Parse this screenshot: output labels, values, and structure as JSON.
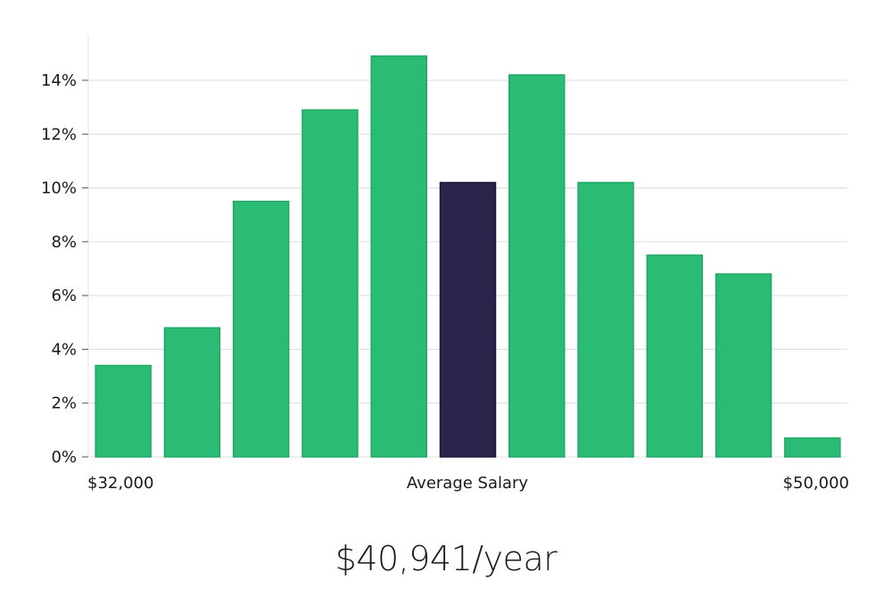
{
  "chart_data": {
    "type": "bar",
    "title": "",
    "xlabel": "Average Salary",
    "ylabel": "",
    "x_range_labels": {
      "min": "$32,000",
      "max": "$50,000"
    },
    "values": [
      3.4,
      4.8,
      9.5,
      12.9,
      14.9,
      10.2,
      14.2,
      10.2,
      7.5,
      6.8,
      0.7
    ],
    "highlight_index": 5,
    "ylim": [
      0,
      16
    ],
    "yticks": [
      0,
      2,
      4,
      6,
      8,
      10,
      12,
      14
    ],
    "ytick_labels": [
      "0%",
      "2%",
      "4%",
      "6%",
      "8%",
      "10%",
      "12%",
      "14%"
    ],
    "grid": true,
    "colors": {
      "bar": "#2abb74",
      "highlight": "#29244a"
    }
  },
  "summary": {
    "salary": "$40,941/year"
  }
}
